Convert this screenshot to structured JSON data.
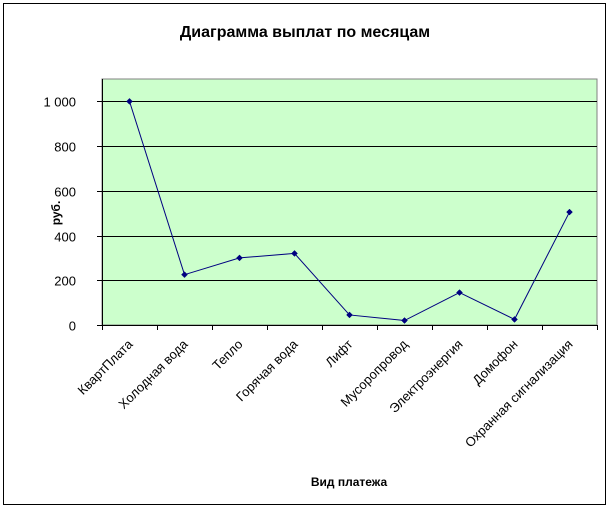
{
  "chart_data": {
    "type": "line",
    "title": "Диаграмма выплат по месяцам",
    "xlabel": "Вид платежа",
    "ylabel": "руб.",
    "categories": [
      "КвартПлата",
      "Холодная вода",
      "Тепло",
      "Горячая вода",
      "Лифт",
      "Мусоропровод",
      "Электроэнергия",
      "Домофон",
      "Охранная сигнализация"
    ],
    "series": [
      {
        "values": [
          1000,
          225,
          300,
          320,
          45,
          20,
          145,
          25,
          505
        ]
      }
    ],
    "ylim": [
      0,
      1100
    ],
    "yticks": [
      0,
      200,
      400,
      600,
      800,
      1000
    ],
    "ytick_labels": [
      "0",
      "200",
      "400",
      "600",
      "800",
      "1 000"
    ],
    "grid": true,
    "legend": "none",
    "colors": {
      "plot_background": "#ccffcc",
      "line": "#000080",
      "marker": "#000080",
      "grid": "#000000"
    }
  }
}
